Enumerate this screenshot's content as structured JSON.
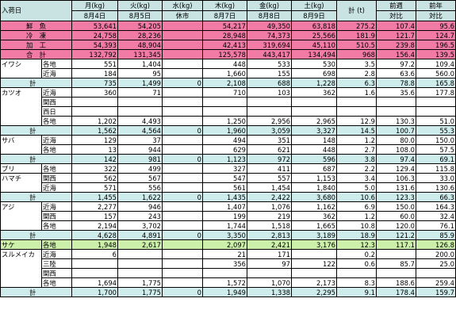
{
  "header": {
    "corner": "入荷日",
    "columns": [
      {
        "day": "月(kg)",
        "date": "8月4日"
      },
      {
        "day": "火(kg)",
        "date": "8月5日"
      },
      {
        "day": "水(kg)",
        "date": "休市"
      },
      {
        "day": "木(kg)",
        "date": "8月7日"
      },
      {
        "day": "金(kg)",
        "date": "8月8日"
      },
      {
        "day": "土(kg)",
        "date": "8月9日"
      },
      {
        "day": "計 (t)",
        "date": ""
      },
      {
        "day": "前週",
        "date": "対比"
      },
      {
        "day": "前年",
        "date": "対比"
      }
    ]
  },
  "rows": [
    {
      "style": "pink",
      "group": "鮮　魚",
      "sub": "",
      "v": [
        "53,641",
        "54,205",
        "",
        "54,217",
        "49,350",
        "63,818",
        "275.2",
        "107.4",
        "95.6"
      ]
    },
    {
      "style": "pink",
      "group": "冷　凍",
      "sub": "",
      "v": [
        "24,758",
        "28,236",
        "",
        "28,948",
        "74,373",
        "25,566",
        "181.9",
        "121.7",
        "124.7"
      ]
    },
    {
      "style": "pink",
      "group": "加　工",
      "sub": "",
      "v": [
        "54,393",
        "48,904",
        "",
        "42,413",
        "319,694",
        "45,110",
        "510.5",
        "239.8",
        "196.5"
      ]
    },
    {
      "style": "pink",
      "group": "合　計",
      "sub": "",
      "v": [
        "132,792",
        "131,345",
        "",
        "125,578",
        "443,417",
        "134,494",
        "968",
        "156.4",
        "139.5"
      ]
    },
    {
      "style": "",
      "group": "イワシ",
      "sub": "各地",
      "v": [
        "551",
        "1,404",
        "",
        "448",
        "533",
        "530",
        "3.5",
        "97.2",
        "109.4"
      ]
    },
    {
      "style": "",
      "group": "",
      "sub": "近海",
      "v": [
        "184",
        "95",
        "",
        "1,660",
        "155",
        "698",
        "2.8",
        "63.6",
        "560.0"
      ]
    },
    {
      "style": "cyan",
      "group": "計",
      "sub": "",
      "v": [
        "735",
        "1,499",
        "0",
        "2,108",
        "688",
        "1,228",
        "6.3",
        "78.8",
        "165.8"
      ]
    },
    {
      "style": "",
      "group": "カツオ",
      "sub": "近海",
      "v": [
        "360",
        "71",
        "",
        "710",
        "103",
        "362",
        "1.6",
        "35.6",
        "177.8"
      ]
    },
    {
      "style": "",
      "group": "",
      "sub": "関西",
      "v": [
        "",
        "",
        "",
        "",
        "",
        "",
        "",
        "",
        ""
      ]
    },
    {
      "style": "",
      "group": "",
      "sub": "西日",
      "v": [
        "",
        "",
        "",
        "",
        "",
        "",
        "",
        "",
        ""
      ]
    },
    {
      "style": "",
      "group": "",
      "sub": "各地",
      "v": [
        "1,202",
        "4,493",
        "",
        "1,250",
        "2,956",
        "2,965",
        "12.9",
        "130.3",
        "51.0"
      ]
    },
    {
      "style": "cyan",
      "group": "計",
      "sub": "",
      "v": [
        "1,562",
        "4,564",
        "0",
        "1,960",
        "3,059",
        "3,327",
        "14.5",
        "100.7",
        "55.3"
      ]
    },
    {
      "style": "",
      "group": "サバ",
      "sub": "近海",
      "v": [
        "129",
        "37",
        "",
        "494",
        "351",
        "148",
        "1.2",
        "80.0",
        "150.0"
      ]
    },
    {
      "style": "",
      "group": "",
      "sub": "各地",
      "v": [
        "13",
        "944",
        "",
        "629",
        "621",
        "448",
        "2.7",
        "108.0",
        "57.5"
      ]
    },
    {
      "style": "cyan",
      "group": "計",
      "sub": "",
      "v": [
        "142",
        "981",
        "0",
        "1,123",
        "972",
        "596",
        "3.8",
        "97.4",
        "69.1"
      ]
    },
    {
      "style": "",
      "group": "ブリ",
      "sub": "各地",
      "v": [
        "322",
        "499",
        "",
        "327",
        "411",
        "687",
        "2.2",
        "129.4",
        "115.8"
      ]
    },
    {
      "style": "",
      "group": "ハマチ",
      "sub": "関西",
      "v": [
        "562",
        "567",
        "",
        "547",
        "557",
        "1,153",
        "3.4",
        "106.3",
        "33.0"
      ]
    },
    {
      "style": "",
      "group": "",
      "sub": "近海",
      "v": [
        "571",
        "556",
        "",
        "561",
        "1,454",
        "1,840",
        "5.0",
        "131.6",
        "130.6"
      ]
    },
    {
      "style": "cyan",
      "group": "計",
      "sub": "",
      "v": [
        "1,455",
        "1,622",
        "0",
        "1,435",
        "2,422",
        "3,680",
        "10.6",
        "123.3",
        "66.3"
      ]
    },
    {
      "style": "",
      "group": "アジ",
      "sub": "近海",
      "v": [
        "2,277",
        "946",
        "",
        "1,407",
        "1,076",
        "1,162",
        "6.9",
        "150.0",
        "164.3"
      ]
    },
    {
      "style": "",
      "group": "",
      "sub": "関西",
      "v": [
        "157",
        "243",
        "",
        "199",
        "219",
        "362",
        "1.2",
        "60.0",
        "32.4"
      ]
    },
    {
      "style": "",
      "group": "",
      "sub": "各地",
      "v": [
        "2,194",
        "3,702",
        "",
        "1,744",
        "1,518",
        "1,665",
        "10.8",
        "120.0",
        "76.1"
      ]
    },
    {
      "style": "cyan",
      "group": "計",
      "sub": "",
      "v": [
        "4,628",
        "4,891",
        "0",
        "3,350",
        "2,813",
        "3,189",
        "18.9",
        "121.2",
        "85.9"
      ]
    },
    {
      "style": "green",
      "group": "サケ",
      "sub": "各地",
      "v": [
        "1,948",
        "2,617",
        "",
        "2,097",
        "2,421",
        "3,176",
        "12.3",
        "117.1",
        "126.8"
      ]
    },
    {
      "style": "",
      "group": "スルメイカ",
      "sub": "近海",
      "v": [
        "6",
        "",
        "",
        "21",
        "171",
        "",
        "0.2",
        "",
        "200.0"
      ]
    },
    {
      "style": "",
      "group": "",
      "sub": "三陸",
      "v": [
        "",
        "",
        "",
        "356",
        "97",
        "122",
        "0.6",
        "85.7",
        "25.0"
      ]
    },
    {
      "style": "",
      "group": "",
      "sub": "関西",
      "v": [
        "",
        "",
        "",
        "",
        "",
        "",
        "",
        "",
        ""
      ]
    },
    {
      "style": "",
      "group": "",
      "sub": "各地",
      "v": [
        "1,694",
        "1,775",
        "",
        "1,572",
        "1,070",
        "2,173",
        "8.3",
        "188.6",
        "259.4"
      ]
    },
    {
      "style": "cyan",
      "group": "計",
      "sub": "",
      "v": [
        "1,700",
        "1,775",
        "0",
        "1,949",
        "1,338",
        "2,295",
        "9.1",
        "178.4",
        "159.7"
      ]
    }
  ]
}
